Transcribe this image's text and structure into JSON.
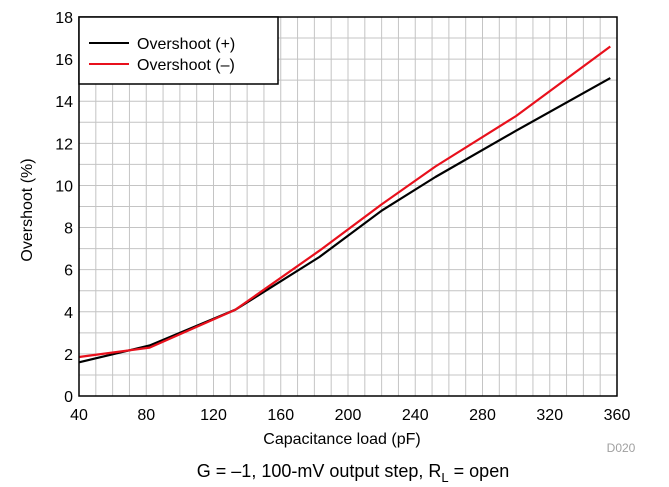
{
  "chart_data": {
    "type": "line",
    "title": "",
    "xlabel": "Capacitance load (pF)",
    "ylabel": "Overshoot (%)",
    "xlim": [
      40,
      360
    ],
    "ylim": [
      0,
      18
    ],
    "x_ticks": [
      40,
      80,
      120,
      160,
      200,
      240,
      280,
      320,
      360
    ],
    "y_ticks": [
      0,
      2,
      4,
      6,
      8,
      10,
      12,
      14,
      16,
      18
    ],
    "minor_x_step": 10,
    "minor_y_step": 1,
    "grid": true,
    "legend_position": "top-left",
    "series": [
      {
        "name": "Overshoot (+)",
        "color": "#000000",
        "x": [
          40,
          82,
          133,
          183,
          220,
          252,
          300,
          356
        ],
        "y": [
          1.6,
          2.4,
          4.1,
          6.6,
          8.8,
          10.4,
          12.6,
          15.1
        ]
      },
      {
        "name": "Overshoot (–)",
        "color": "#e8101c",
        "x": [
          40,
          82,
          133,
          183,
          220,
          252,
          300,
          356
        ],
        "y": [
          1.85,
          2.3,
          4.1,
          6.9,
          9.1,
          10.9,
          13.3,
          16.6
        ]
      }
    ]
  },
  "figure_id": "D020",
  "caption": {
    "prefix": "G = –1, 100-mV output step, R",
    "subscript": "L",
    "suffix": " = open"
  }
}
